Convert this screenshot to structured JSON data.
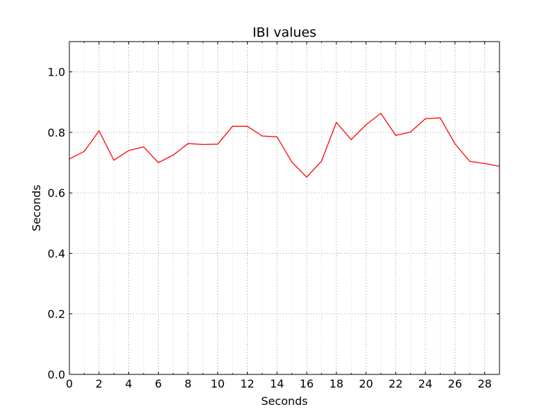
{
  "chart_data": {
    "type": "line",
    "title": "IBI values",
    "xlabel": "Seconds",
    "ylabel": "Seconds",
    "xlim": [
      0,
      29
    ],
    "ylim": [
      0,
      1.1
    ],
    "grid": true,
    "xticks": [
      0,
      2,
      4,
      6,
      8,
      10,
      12,
      14,
      16,
      18,
      20,
      22,
      24,
      26,
      28
    ],
    "xticks_minor": [
      1,
      3,
      5,
      7,
      9,
      11,
      13,
      15,
      17,
      19,
      21,
      23,
      25,
      27
    ],
    "yticks": [
      "0.0",
      "0.2",
      "0.4",
      "0.6",
      "0.8",
      "1.0"
    ],
    "series": [
      {
        "color": "#ff0000",
        "x": [
          0,
          1,
          2,
          3,
          4,
          5,
          6,
          7,
          8,
          9,
          10,
          11,
          12,
          13,
          14,
          15,
          16,
          17,
          18,
          19,
          20,
          21,
          22,
          23,
          24,
          25,
          26,
          27,
          28,
          29
        ],
        "values": [
          0.712,
          0.737,
          0.805,
          0.708,
          0.74,
          0.752,
          0.7,
          0.725,
          0.763,
          0.76,
          0.761,
          0.82,
          0.82,
          0.788,
          0.785,
          0.702,
          0.652,
          0.705,
          0.833,
          0.776,
          0.825,
          0.863,
          0.79,
          0.801,
          0.845,
          0.848,
          0.762,
          0.704,
          0.697,
          0.688
        ]
      }
    ]
  }
}
